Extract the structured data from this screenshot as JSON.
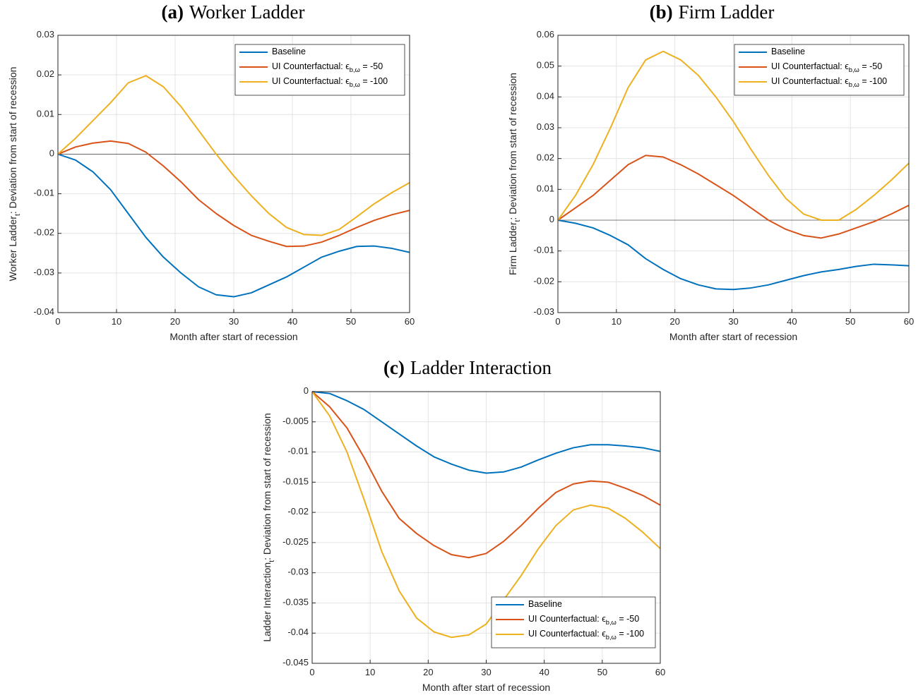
{
  "chart_data": [
    {
      "type": "line",
      "panel": "(a)",
      "title": "Worker Ladder",
      "xlabel": "Month after start of recession",
      "ylabel": "Worker Ladder_{t}: Deviation from start of recession",
      "x": [
        0,
        3,
        6,
        9,
        12,
        15,
        18,
        21,
        24,
        27,
        30,
        33,
        36,
        39,
        42,
        45,
        48,
        51,
        54,
        57,
        60
      ],
      "series": [
        {
          "name": "Baseline",
          "color": "#0072BD",
          "values": [
            0,
            -0.0015,
            -0.0045,
            -0.009,
            -0.015,
            -0.021,
            -0.026,
            -0.03,
            -0.0335,
            -0.0355,
            -0.036,
            -0.035,
            -0.033,
            -0.031,
            -0.0285,
            -0.026,
            -0.0245,
            -0.0233,
            -0.0232,
            -0.0238,
            -0.0248
          ]
        },
        {
          "name": "UI Counterfactual: ϵ_{b,ω} = -50",
          "color": "#D95319",
          "values": [
            0,
            0.0018,
            0.0028,
            0.0033,
            0.0027,
            0.0005,
            -0.003,
            -0.007,
            -0.0115,
            -0.015,
            -0.018,
            -0.0205,
            -0.022,
            -0.0233,
            -0.0232,
            -0.0222,
            -0.0205,
            -0.0185,
            -0.0167,
            -0.0153,
            -0.0142
          ]
        },
        {
          "name": "UI Counterfactual: ϵ_{b,ω} = -100",
          "color": "#EDB120",
          "values": [
            0,
            0.004,
            0.0085,
            0.013,
            0.018,
            0.0198,
            0.017,
            0.012,
            0.006,
            0,
            -0.0055,
            -0.0105,
            -0.015,
            -0.0185,
            -0.0203,
            -0.0205,
            -0.019,
            -0.0158,
            -0.0125,
            -0.0097,
            -0.0072
          ]
        }
      ],
      "xlim": [
        0,
        60
      ],
      "xticks": [
        0,
        10,
        20,
        30,
        40,
        50,
        60
      ],
      "ylim": [
        -0.04,
        0.03
      ],
      "yticks": [
        -0.04,
        -0.03,
        -0.02,
        -0.01,
        0,
        0.01,
        0.02,
        0.03
      ],
      "grid": true,
      "zero_line": true,
      "legend_loc": "northeast"
    },
    {
      "type": "line",
      "panel": "(b)",
      "title": "Firm Ladder",
      "xlabel": "Month after start of recession",
      "ylabel": "Firm Ladder_{t}: Deviation from start of recession",
      "x": [
        0,
        3,
        6,
        9,
        12,
        15,
        18,
        21,
        24,
        27,
        30,
        33,
        36,
        39,
        42,
        45,
        48,
        51,
        54,
        57,
        60
      ],
      "series": [
        {
          "name": "Baseline",
          "color": "#0072BD",
          "values": [
            0,
            -0.001,
            -0.0025,
            -0.005,
            -0.008,
            -0.0125,
            -0.016,
            -0.019,
            -0.021,
            -0.0223,
            -0.0225,
            -0.022,
            -0.021,
            -0.0195,
            -0.018,
            -0.0168,
            -0.016,
            -0.015,
            -0.0143,
            -0.0145,
            -0.0148
          ]
        },
        {
          "name": "UI Counterfactual: ϵ_{b,ω} = -50",
          "color": "#D95319",
          "values": [
            0,
            0.004,
            0.008,
            0.013,
            0.018,
            0.021,
            0.0205,
            0.018,
            0.015,
            0.0115,
            0.008,
            0.004,
            0,
            -0.003,
            -0.005,
            -0.0058,
            -0.0045,
            -0.0025,
            -0.0005,
            0.002,
            0.0048
          ]
        },
        {
          "name": "UI Counterfactual: ϵ_{b,ω} = -100",
          "color": "#EDB120",
          "values": [
            0,
            0.008,
            0.018,
            0.03,
            0.043,
            0.052,
            0.0548,
            0.052,
            0.047,
            0.04,
            0.032,
            0.023,
            0.0145,
            0.007,
            0.002,
            0,
            0,
            0.0035,
            0.008,
            0.013,
            0.0185
          ]
        }
      ],
      "xlim": [
        0,
        60
      ],
      "xticks": [
        0,
        10,
        20,
        30,
        40,
        50,
        60
      ],
      "ylim": [
        -0.03,
        0.06
      ],
      "yticks": [
        -0.03,
        -0.02,
        -0.01,
        0,
        0.01,
        0.02,
        0.03,
        0.04,
        0.05,
        0.06
      ],
      "grid": true,
      "zero_line": true,
      "legend_loc": "northeast"
    },
    {
      "type": "line",
      "panel": "(c)",
      "title": "Ladder Interaction",
      "xlabel": "Month after start of recession",
      "ylabel": "Ladder Interaction_{t}: Deviation from start of recession",
      "x": [
        0,
        3,
        6,
        9,
        12,
        15,
        18,
        21,
        24,
        27,
        30,
        33,
        36,
        39,
        42,
        45,
        48,
        51,
        54,
        57,
        60
      ],
      "series": [
        {
          "name": "Baseline",
          "color": "#0072BD",
          "values": [
            0,
            -0.0003,
            -0.0015,
            -0.003,
            -0.005,
            -0.007,
            -0.009,
            -0.0108,
            -0.012,
            -0.013,
            -0.0135,
            -0.0133,
            -0.0125,
            -0.0113,
            -0.0102,
            -0.0093,
            -0.0088,
            -0.0088,
            -0.009,
            -0.0093,
            -0.0099
          ]
        },
        {
          "name": "UI Counterfactual: ϵ_{b,ω} = -50",
          "color": "#D95319",
          "values": [
            0,
            -0.0025,
            -0.006,
            -0.011,
            -0.0165,
            -0.021,
            -0.0235,
            -0.0255,
            -0.027,
            -0.0275,
            -0.0268,
            -0.0248,
            -0.0222,
            -0.0193,
            -0.0167,
            -0.0153,
            -0.0148,
            -0.015,
            -0.016,
            -0.0172,
            -0.0188
          ]
        },
        {
          "name": "UI Counterfactual: ϵ_{b,ω} = -100",
          "color": "#EDB120",
          "values": [
            0,
            -0.004,
            -0.01,
            -0.018,
            -0.0265,
            -0.033,
            -0.0375,
            -0.0398,
            -0.0407,
            -0.0403,
            -0.0385,
            -0.0345,
            -0.0305,
            -0.026,
            -0.0222,
            -0.0196,
            -0.0188,
            -0.0193,
            -0.021,
            -0.0233,
            -0.026
          ]
        }
      ],
      "xlim": [
        0,
        60
      ],
      "xticks": [
        0,
        10,
        20,
        30,
        40,
        50,
        60
      ],
      "ylim": [
        -0.045,
        0
      ],
      "yticks": [
        -0.045,
        -0.04,
        -0.035,
        -0.03,
        -0.025,
        -0.02,
        -0.015,
        -0.01,
        -0.005,
        0
      ],
      "grid": true,
      "zero_line": false,
      "legend_loc": "southeast"
    }
  ]
}
